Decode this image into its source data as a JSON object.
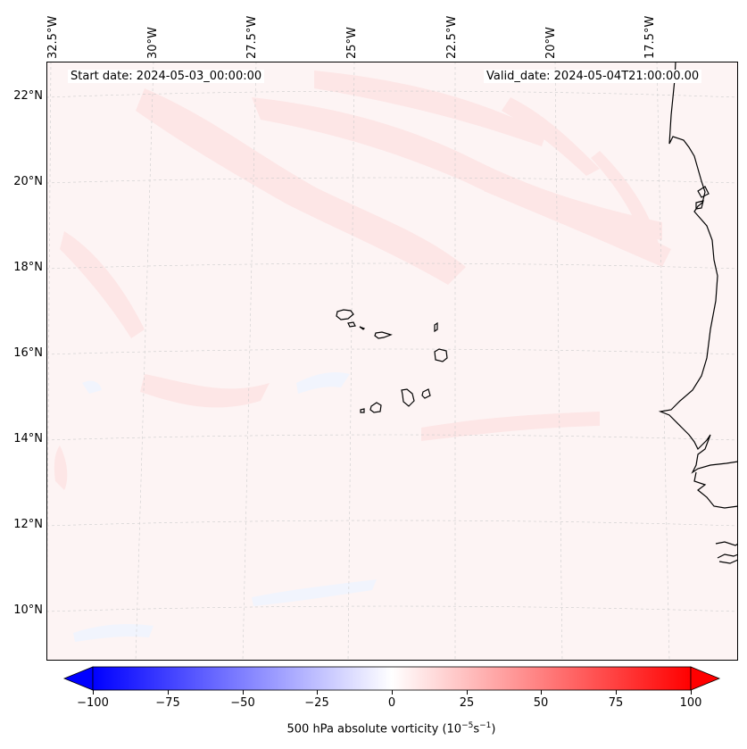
{
  "map": {
    "header": {
      "start_date": "Start date: 2024-05-03_00:00:00",
      "valid_date": "Valid_date: 2024-05-04T21:00:00.00"
    },
    "longitude_labels": [
      "32.5°W",
      "30°W",
      "27.5°W",
      "25°W",
      "22.5°W",
      "20°W",
      "17.5°W"
    ],
    "latitude_labels": [
      "22°N",
      "20°N",
      "18°N",
      "16°N",
      "14°N",
      "12°N",
      "10°N"
    ],
    "colors": {
      "field_base": "#fdf4f4",
      "positive_light": "#fde6e6",
      "negative_light": "#f1f4fd",
      "coast": "#000000",
      "grid": "#cccccc"
    }
  },
  "colorbar": {
    "ticks": [
      "−100",
      "−75",
      "−50",
      "−25",
      "0",
      "25",
      "50",
      "75",
      "100"
    ],
    "label_prefix": "500 hPa absolute vorticity (10",
    "label_exp1": "−5",
    "label_mid": "s",
    "label_exp2": "−1",
    "label_suffix": ")",
    "cmap": "bwr",
    "range": [
      -100,
      100
    ]
  }
}
